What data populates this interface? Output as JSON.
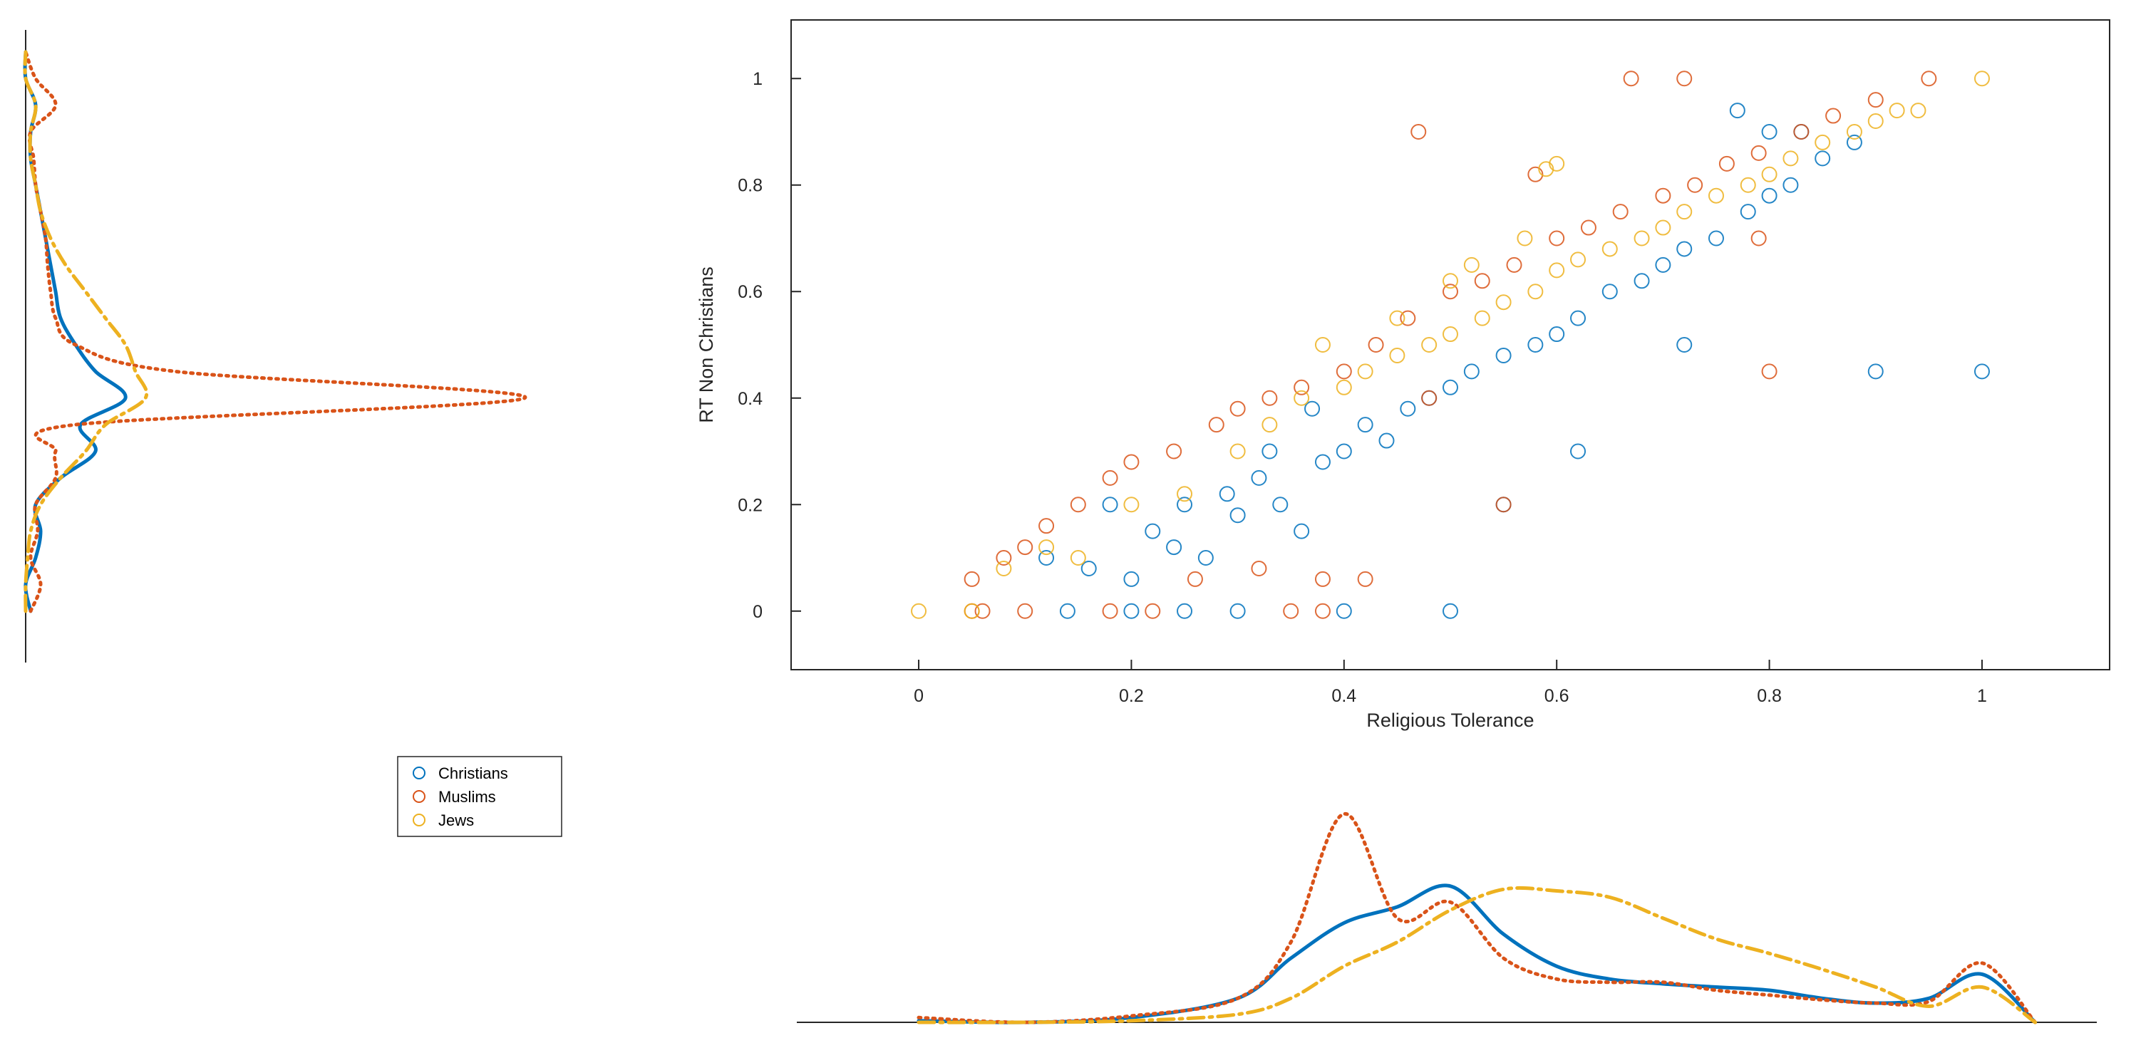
{
  "chart_data": [
    {
      "type": "scatter",
      "title": "",
      "xlabel": "Religious Tolerance",
      "ylabel": "RT Non Christians",
      "xlim": [
        -0.12,
        1.12
      ],
      "ylim": [
        -0.11,
        1.11
      ],
      "xticks": [
        "0",
        "0.2",
        "0.4",
        "0.6",
        "0.8",
        "1"
      ],
      "yticks": [
        "0",
        "0.2",
        "0.4",
        "0.6",
        "0.8",
        "1"
      ],
      "grid": false,
      "series": [
        {
          "name": "Christians",
          "color": "#0072BD",
          "marker": "circle-open",
          "points": [
            [
              0.14,
              0.0
            ],
            [
              0.2,
              0.0
            ],
            [
              0.25,
              0.0
            ],
            [
              0.3,
              0.0
            ],
            [
              0.4,
              0.0
            ],
            [
              0.5,
              0.0
            ],
            [
              0.12,
              0.1
            ],
            [
              0.16,
              0.08
            ],
            [
              0.18,
              0.2
            ],
            [
              0.22,
              0.15
            ],
            [
              0.25,
              0.2
            ],
            [
              0.27,
              0.1
            ],
            [
              0.3,
              0.18
            ],
            [
              0.32,
              0.25
            ],
            [
              0.34,
              0.2
            ],
            [
              0.36,
              0.15
            ],
            [
              0.38,
              0.28
            ],
            [
              0.4,
              0.3
            ],
            [
              0.42,
              0.35
            ],
            [
              0.44,
              0.32
            ],
            [
              0.46,
              0.38
            ],
            [
              0.48,
              0.4
            ],
            [
              0.5,
              0.42
            ],
            [
              0.52,
              0.45
            ],
            [
              0.55,
              0.48
            ],
            [
              0.58,
              0.5
            ],
            [
              0.6,
              0.52
            ],
            [
              0.62,
              0.55
            ],
            [
              0.65,
              0.6
            ],
            [
              0.68,
              0.62
            ],
            [
              0.7,
              0.65
            ],
            [
              0.72,
              0.68
            ],
            [
              0.75,
              0.7
            ],
            [
              0.78,
              0.75
            ],
            [
              0.8,
              0.78
            ],
            [
              0.82,
              0.8
            ],
            [
              0.85,
              0.85
            ],
            [
              0.88,
              0.88
            ],
            [
              0.8,
              0.9
            ],
            [
              0.83,
              0.9
            ],
            [
              0.77,
              0.94
            ],
            [
              0.9,
              0.45
            ],
            [
              1.0,
              0.45
            ],
            [
              0.72,
              0.5
            ],
            [
              0.62,
              0.3
            ],
            [
              0.55,
              0.2
            ],
            [
              0.37,
              0.38
            ],
            [
              0.33,
              0.3
            ],
            [
              0.29,
              0.22
            ],
            [
              0.24,
              0.12
            ],
            [
              0.2,
              0.06
            ]
          ]
        },
        {
          "name": "Muslims",
          "color": "#D95319",
          "marker": "circle-open",
          "points": [
            [
              0.05,
              0.0
            ],
            [
              0.06,
              0.0
            ],
            [
              0.1,
              0.0
            ],
            [
              0.18,
              0.0
            ],
            [
              0.22,
              0.0
            ],
            [
              0.35,
              0.0
            ],
            [
              0.38,
              0.0
            ],
            [
              0.05,
              0.06
            ],
            [
              0.08,
              0.1
            ],
            [
              0.1,
              0.12
            ],
            [
              0.12,
              0.16
            ],
            [
              0.15,
              0.2
            ],
            [
              0.18,
              0.25
            ],
            [
              0.2,
              0.28
            ],
            [
              0.24,
              0.3
            ],
            [
              0.28,
              0.35
            ],
            [
              0.3,
              0.38
            ],
            [
              0.33,
              0.4
            ],
            [
              0.36,
              0.42
            ],
            [
              0.4,
              0.45
            ],
            [
              0.43,
              0.5
            ],
            [
              0.46,
              0.55
            ],
            [
              0.5,
              0.6
            ],
            [
              0.53,
              0.62
            ],
            [
              0.56,
              0.65
            ],
            [
              0.6,
              0.7
            ],
            [
              0.63,
              0.72
            ],
            [
              0.66,
              0.75
            ],
            [
              0.7,
              0.78
            ],
            [
              0.73,
              0.8
            ],
            [
              0.76,
              0.84
            ],
            [
              0.79,
              0.86
            ],
            [
              0.83,
              0.9
            ],
            [
              0.86,
              0.93
            ],
            [
              0.9,
              0.96
            ],
            [
              0.95,
              1.0
            ],
            [
              0.67,
              1.0
            ],
            [
              0.72,
              1.0
            ],
            [
              0.47,
              0.9
            ],
            [
              0.8,
              0.45
            ],
            [
              0.79,
              0.7
            ],
            [
              0.55,
              0.2
            ],
            [
              0.38,
              0.06
            ],
            [
              0.42,
              0.06
            ],
            [
              0.32,
              0.08
            ],
            [
              0.26,
              0.06
            ],
            [
              0.48,
              0.4
            ],
            [
              0.58,
              0.82
            ]
          ]
        },
        {
          "name": "Jews",
          "color": "#EDB120",
          "marker": "circle-open",
          "points": [
            [
              0.0,
              0.0
            ],
            [
              0.05,
              0.0
            ],
            [
              0.08,
              0.08
            ],
            [
              0.12,
              0.12
            ],
            [
              0.15,
              0.1
            ],
            [
              0.2,
              0.2
            ],
            [
              0.25,
              0.22
            ],
            [
              0.3,
              0.3
            ],
            [
              0.33,
              0.35
            ],
            [
              0.36,
              0.4
            ],
            [
              0.4,
              0.42
            ],
            [
              0.42,
              0.45
            ],
            [
              0.45,
              0.48
            ],
            [
              0.48,
              0.5
            ],
            [
              0.5,
              0.52
            ],
            [
              0.53,
              0.55
            ],
            [
              0.55,
              0.58
            ],
            [
              0.58,
              0.6
            ],
            [
              0.6,
              0.64
            ],
            [
              0.62,
              0.66
            ],
            [
              0.65,
              0.68
            ],
            [
              0.68,
              0.7
            ],
            [
              0.7,
              0.72
            ],
            [
              0.72,
              0.75
            ],
            [
              0.75,
              0.78
            ],
            [
              0.78,
              0.8
            ],
            [
              0.8,
              0.82
            ],
            [
              0.82,
              0.85
            ],
            [
              0.85,
              0.88
            ],
            [
              0.88,
              0.9
            ],
            [
              0.9,
              0.92
            ],
            [
              0.92,
              0.94
            ],
            [
              0.94,
              0.94
            ],
            [
              1.0,
              1.0
            ],
            [
              0.6,
              0.84
            ],
            [
              0.59,
              0.83
            ],
            [
              0.5,
              0.62
            ],
            [
              0.52,
              0.65
            ],
            [
              0.57,
              0.7
            ],
            [
              0.45,
              0.55
            ],
            [
              0.38,
              0.5
            ]
          ]
        }
      ]
    },
    {
      "type": "line",
      "role": "marginal density of Religious Tolerance (bottom)",
      "x": [
        0.0,
        0.1,
        0.2,
        0.3,
        0.35,
        0.4,
        0.45,
        0.5,
        0.55,
        0.6,
        0.65,
        0.7,
        0.75,
        0.8,
        0.85,
        0.9,
        0.95,
        1.0,
        1.05
      ],
      "series": [
        {
          "name": "Christians",
          "style": "solid",
          "values": [
            0.01,
            0.0,
            0.03,
            0.15,
            0.4,
            0.62,
            0.72,
            0.85,
            0.55,
            0.35,
            0.27,
            0.24,
            0.22,
            0.2,
            0.15,
            0.12,
            0.15,
            0.3,
            0.0
          ]
        },
        {
          "name": "Muslims",
          "style": "dotted",
          "values": [
            0.03,
            0.0,
            0.04,
            0.15,
            0.5,
            1.3,
            0.65,
            0.75,
            0.4,
            0.27,
            0.25,
            0.25,
            0.2,
            0.17,
            0.14,
            0.12,
            0.13,
            0.37,
            0.0
          ]
        },
        {
          "name": "Jews",
          "style": "dash-dot",
          "values": [
            0.0,
            0.0,
            0.01,
            0.05,
            0.15,
            0.35,
            0.5,
            0.7,
            0.83,
            0.82,
            0.78,
            0.65,
            0.52,
            0.43,
            0.33,
            0.22,
            0.1,
            0.22,
            0.0
          ]
        }
      ]
    },
    {
      "type": "line",
      "role": "marginal density of RT Non Christians (left, horizontal)",
      "y": [
        0.0,
        0.05,
        0.1,
        0.15,
        0.2,
        0.25,
        0.3,
        0.35,
        0.4,
        0.45,
        0.5,
        0.55,
        0.6,
        0.65,
        0.7,
        0.75,
        0.8,
        0.85,
        0.9,
        0.95,
        1.0,
        1.05
      ],
      "series": [
        {
          "name": "Christians",
          "style": "solid",
          "values": [
            0.05,
            0.0,
            0.1,
            0.15,
            0.1,
            0.35,
            0.7,
            0.55,
            1.0,
            0.7,
            0.5,
            0.35,
            0.3,
            0.25,
            0.2,
            0.15,
            0.1,
            0.05,
            0.05,
            0.1,
            0.0,
            0.0
          ]
        },
        {
          "name": "Muslims",
          "style": "dotted",
          "values": [
            0.05,
            0.15,
            0.05,
            0.12,
            0.1,
            0.3,
            0.3,
            0.5,
            5.0,
            1.5,
            0.5,
            0.3,
            0.25,
            0.22,
            0.2,
            0.15,
            0.1,
            0.08,
            0.05,
            0.3,
            0.1,
            0.0
          ]
        },
        {
          "name": "Jews",
          "style": "dash-dot",
          "values": [
            0.0,
            0.0,
            0.02,
            0.05,
            0.15,
            0.35,
            0.6,
            0.8,
            1.2,
            1.1,
            1.0,
            0.8,
            0.6,
            0.4,
            0.25,
            0.15,
            0.1,
            0.05,
            0.05,
            0.1,
            0.0,
            0.0
          ]
        }
      ]
    }
  ],
  "legend": {
    "entries": [
      "Christians",
      "Muslims",
      "Jews"
    ],
    "placement": "below left marginal plot"
  },
  "colors": {
    "christians": "#0072BD",
    "muslims": "#D95319",
    "jews": "#EDB120",
    "axis": "#262626"
  }
}
